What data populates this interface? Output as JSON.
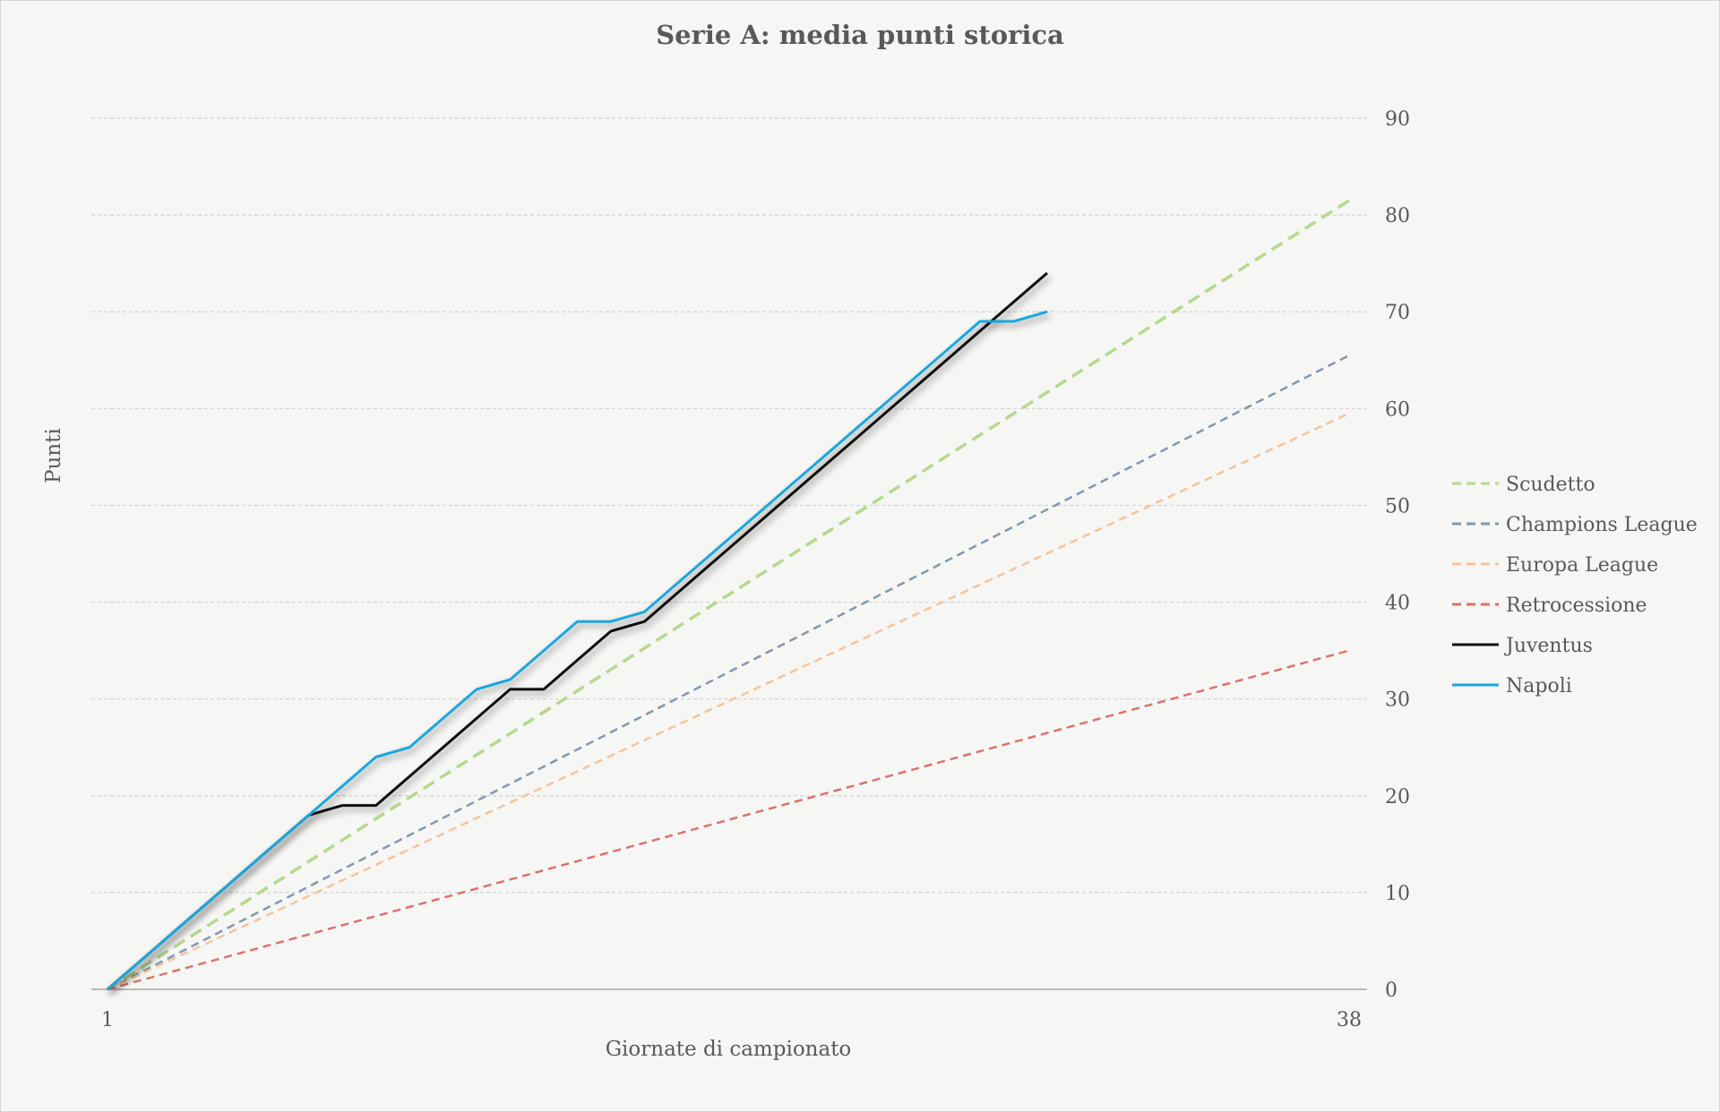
{
  "chart_data": {
    "type": "line",
    "title": "Serie A: media punti storica",
    "xlabel": "Giornate di campionato",
    "ylabel": "Punti",
    "xlim": [
      1,
      38
    ],
    "ylim": [
      0,
      90
    ],
    "y_ticks": [
      "0",
      "10",
      "20",
      "30",
      "40",
      "50",
      "60",
      "70",
      "80",
      "90"
    ],
    "x_ticks": [
      "1",
      "38"
    ],
    "y_axis_side": "right",
    "grid": true,
    "legend_position": "right",
    "series": [
      {
        "name": "Scudetto",
        "style": "dashed",
        "color": "#b6d88e",
        "x": [
          1,
          38
        ],
        "y": [
          0,
          81.5
        ]
      },
      {
        "name": "Champions League",
        "style": "dashed",
        "color": "#8197b2",
        "x": [
          1,
          38
        ],
        "y": [
          0,
          65.5
        ]
      },
      {
        "name": "Europa League",
        "style": "dashed",
        "color": "#f6c39c",
        "x": [
          1,
          38
        ],
        "y": [
          0,
          59.5
        ]
      },
      {
        "name": "Retrocessione",
        "style": "dashed",
        "color": "#d9736c",
        "x": [
          1,
          38
        ],
        "y": [
          0,
          35
        ]
      },
      {
        "name": "Juventus",
        "style": "solid",
        "color": "#111111",
        "x": [
          1,
          2,
          3,
          4,
          5,
          6,
          7,
          8,
          9,
          10,
          11,
          12,
          13,
          14,
          15,
          16,
          17,
          18,
          19,
          20,
          21,
          22,
          23,
          24,
          25,
          26,
          27,
          28,
          29,
          30
        ],
        "y": [
          0,
          3,
          6,
          9,
          12,
          15,
          18,
          19,
          19,
          22,
          25,
          28,
          31,
          31,
          34,
          37,
          38,
          41,
          44,
          47,
          50,
          53,
          56,
          59,
          62,
          65,
          68,
          71,
          74,
          null
        ]
      },
      {
        "name": "Napoli",
        "style": "solid",
        "color": "#1aa6de",
        "x": [
          1,
          2,
          3,
          4,
          5,
          6,
          7,
          8,
          9,
          10,
          11,
          12,
          13,
          14,
          15,
          16,
          17,
          18,
          19,
          20,
          21,
          22,
          23,
          24,
          25,
          26,
          27,
          28,
          29,
          30
        ],
        "y": [
          0,
          3,
          6,
          9,
          12,
          15,
          18,
          21,
          24,
          25,
          28,
          31,
          32,
          35,
          38,
          38,
          39,
          42,
          45,
          48,
          51,
          54,
          57,
          60,
          63,
          66,
          69,
          69,
          70,
          null
        ]
      }
    ]
  }
}
